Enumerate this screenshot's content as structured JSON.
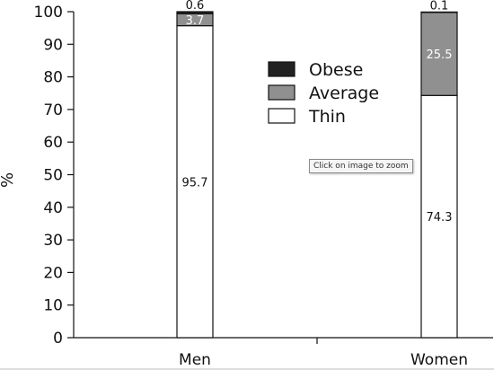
{
  "tooltip": "Click on image to zoom",
  "colors": {
    "obese": "#222222",
    "average": "#909090",
    "thin": "#ffffff",
    "axis": "#111111"
  },
  "chart_data": {
    "type": "bar",
    "stacked": true,
    "categories": [
      "Men",
      "Women"
    ],
    "series": [
      {
        "name": "Thin",
        "values": [
          95.7,
          74.3
        ]
      },
      {
        "name": "Average",
        "values": [
          3.7,
          25.5
        ]
      },
      {
        "name": "Obese",
        "values": [
          0.6,
          0.1
        ]
      }
    ],
    "legend_order": [
      "Obese",
      "Average",
      "Thin"
    ],
    "legend_position": "top-right",
    "ylabel": "%",
    "xlabel": "",
    "ylim": [
      0,
      100
    ],
    "yticks": [
      0,
      10,
      20,
      30,
      40,
      50,
      60,
      70,
      80,
      90,
      100
    ],
    "grid": false
  }
}
